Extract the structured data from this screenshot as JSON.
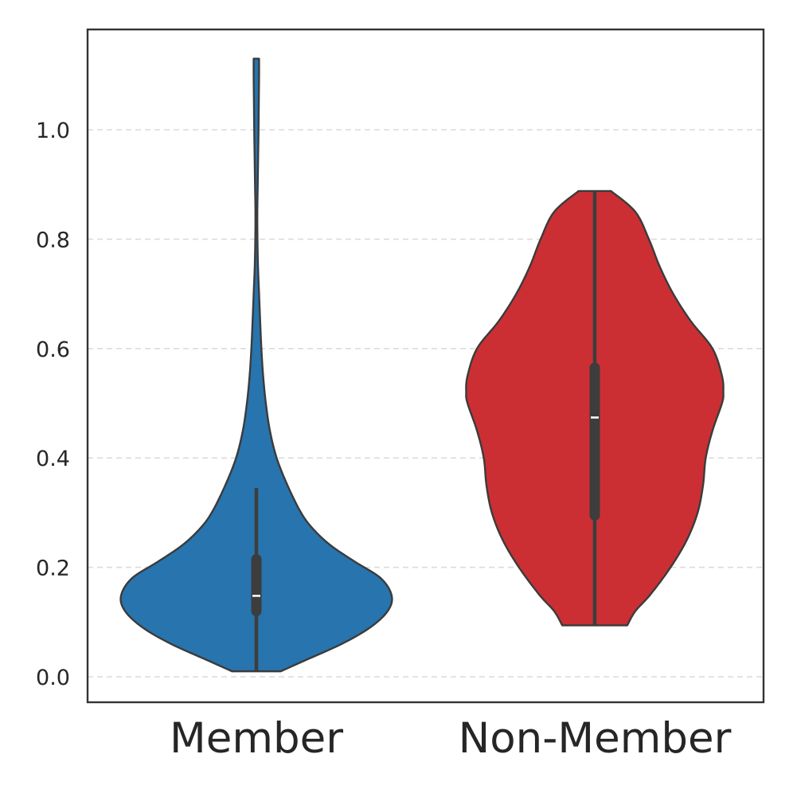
{
  "chart_data": {
    "type": "violin",
    "title": "",
    "xlabel": "",
    "ylabel": "",
    "categories": [
      "Member",
      "Non-Member"
    ],
    "ylim": [
      -0.05,
      1.18
    ],
    "yticks": [
      0.0,
      0.2,
      0.4,
      0.6,
      0.8,
      1.0
    ],
    "ytick_labels": [
      "0.0",
      "0.2",
      "0.4",
      "0.6",
      "0.8",
      "1.0"
    ],
    "grid": "horizontal dashed",
    "legend": "none",
    "series": [
      {
        "category": "Member",
        "color": "#2774ae",
        "min": 0.01,
        "q1": 0.12,
        "median": 0.148,
        "q3": 0.215,
        "whisker_high": 0.345,
        "max": 1.13,
        "density": [
          [
            0.01,
            0.18
          ],
          [
            0.03,
            0.36
          ],
          [
            0.06,
            0.63
          ],
          [
            0.09,
            0.84
          ],
          [
            0.12,
            0.97
          ],
          [
            0.148,
            1.0
          ],
          [
            0.18,
            0.92
          ],
          [
            0.21,
            0.73
          ],
          [
            0.24,
            0.55
          ],
          [
            0.27,
            0.42
          ],
          [
            0.3,
            0.33
          ],
          [
            0.35,
            0.23
          ],
          [
            0.4,
            0.15
          ],
          [
            0.45,
            0.1
          ],
          [
            0.5,
            0.07
          ],
          [
            0.55,
            0.05
          ],
          [
            0.6,
            0.037
          ],
          [
            0.65,
            0.028
          ],
          [
            0.7,
            0.02
          ],
          [
            0.75,
            0.012
          ],
          [
            0.8,
            0.008
          ],
          [
            0.85,
            0.007
          ],
          [
            0.9,
            0.01
          ],
          [
            0.95,
            0.013
          ],
          [
            1.0,
            0.016
          ],
          [
            1.05,
            0.018
          ],
          [
            1.1,
            0.02
          ],
          [
            1.13,
            0.02
          ]
        ]
      },
      {
        "category": "Non-Member",
        "color": "#cb2f33",
        "min": 0.094,
        "q1": 0.295,
        "median": 0.474,
        "q3": 0.565,
        "whisker_high": 0.888,
        "max": 0.888,
        "density": [
          [
            0.094,
            0.24
          ],
          [
            0.12,
            0.3
          ],
          [
            0.15,
            0.41
          ],
          [
            0.2,
            0.56
          ],
          [
            0.25,
            0.68
          ],
          [
            0.3,
            0.76
          ],
          [
            0.35,
            0.8
          ],
          [
            0.4,
            0.82
          ],
          [
            0.45,
            0.87
          ],
          [
            0.5,
            0.94
          ],
          [
            0.52,
            0.95
          ],
          [
            0.55,
            0.94
          ],
          [
            0.6,
            0.87
          ],
          [
            0.65,
            0.71
          ],
          [
            0.7,
            0.58
          ],
          [
            0.75,
            0.48
          ],
          [
            0.8,
            0.4
          ],
          [
            0.85,
            0.3
          ],
          [
            0.888,
            0.12
          ]
        ]
      }
    ]
  }
}
